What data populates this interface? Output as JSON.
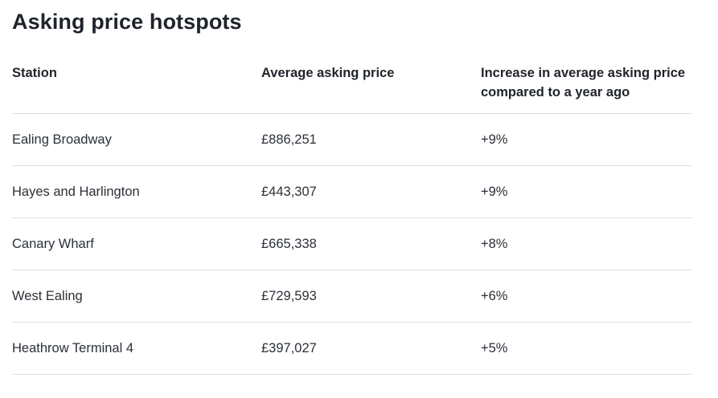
{
  "page": {
    "title": "Asking price hotspots"
  },
  "table": {
    "headers": {
      "station": "Station",
      "avg_price": "Average asking price",
      "increase_line1": "Increase in average asking price",
      "increase_line2": "compared to a year ago"
    },
    "rows": [
      {
        "station": "Ealing Broadway",
        "price": "£886,251",
        "increase": "+9%"
      },
      {
        "station": "Hayes and Harlington",
        "price": "£443,307",
        "increase": "+9%"
      },
      {
        "station": "Canary Wharf",
        "price": "£665,338",
        "increase": "+8%"
      },
      {
        "station": "West Ealing",
        "price": "£729,593",
        "increase": "+6%"
      },
      {
        "station": "Heathrow Terminal 4",
        "price": "£397,027",
        "increase": "+5%"
      }
    ]
  }
}
